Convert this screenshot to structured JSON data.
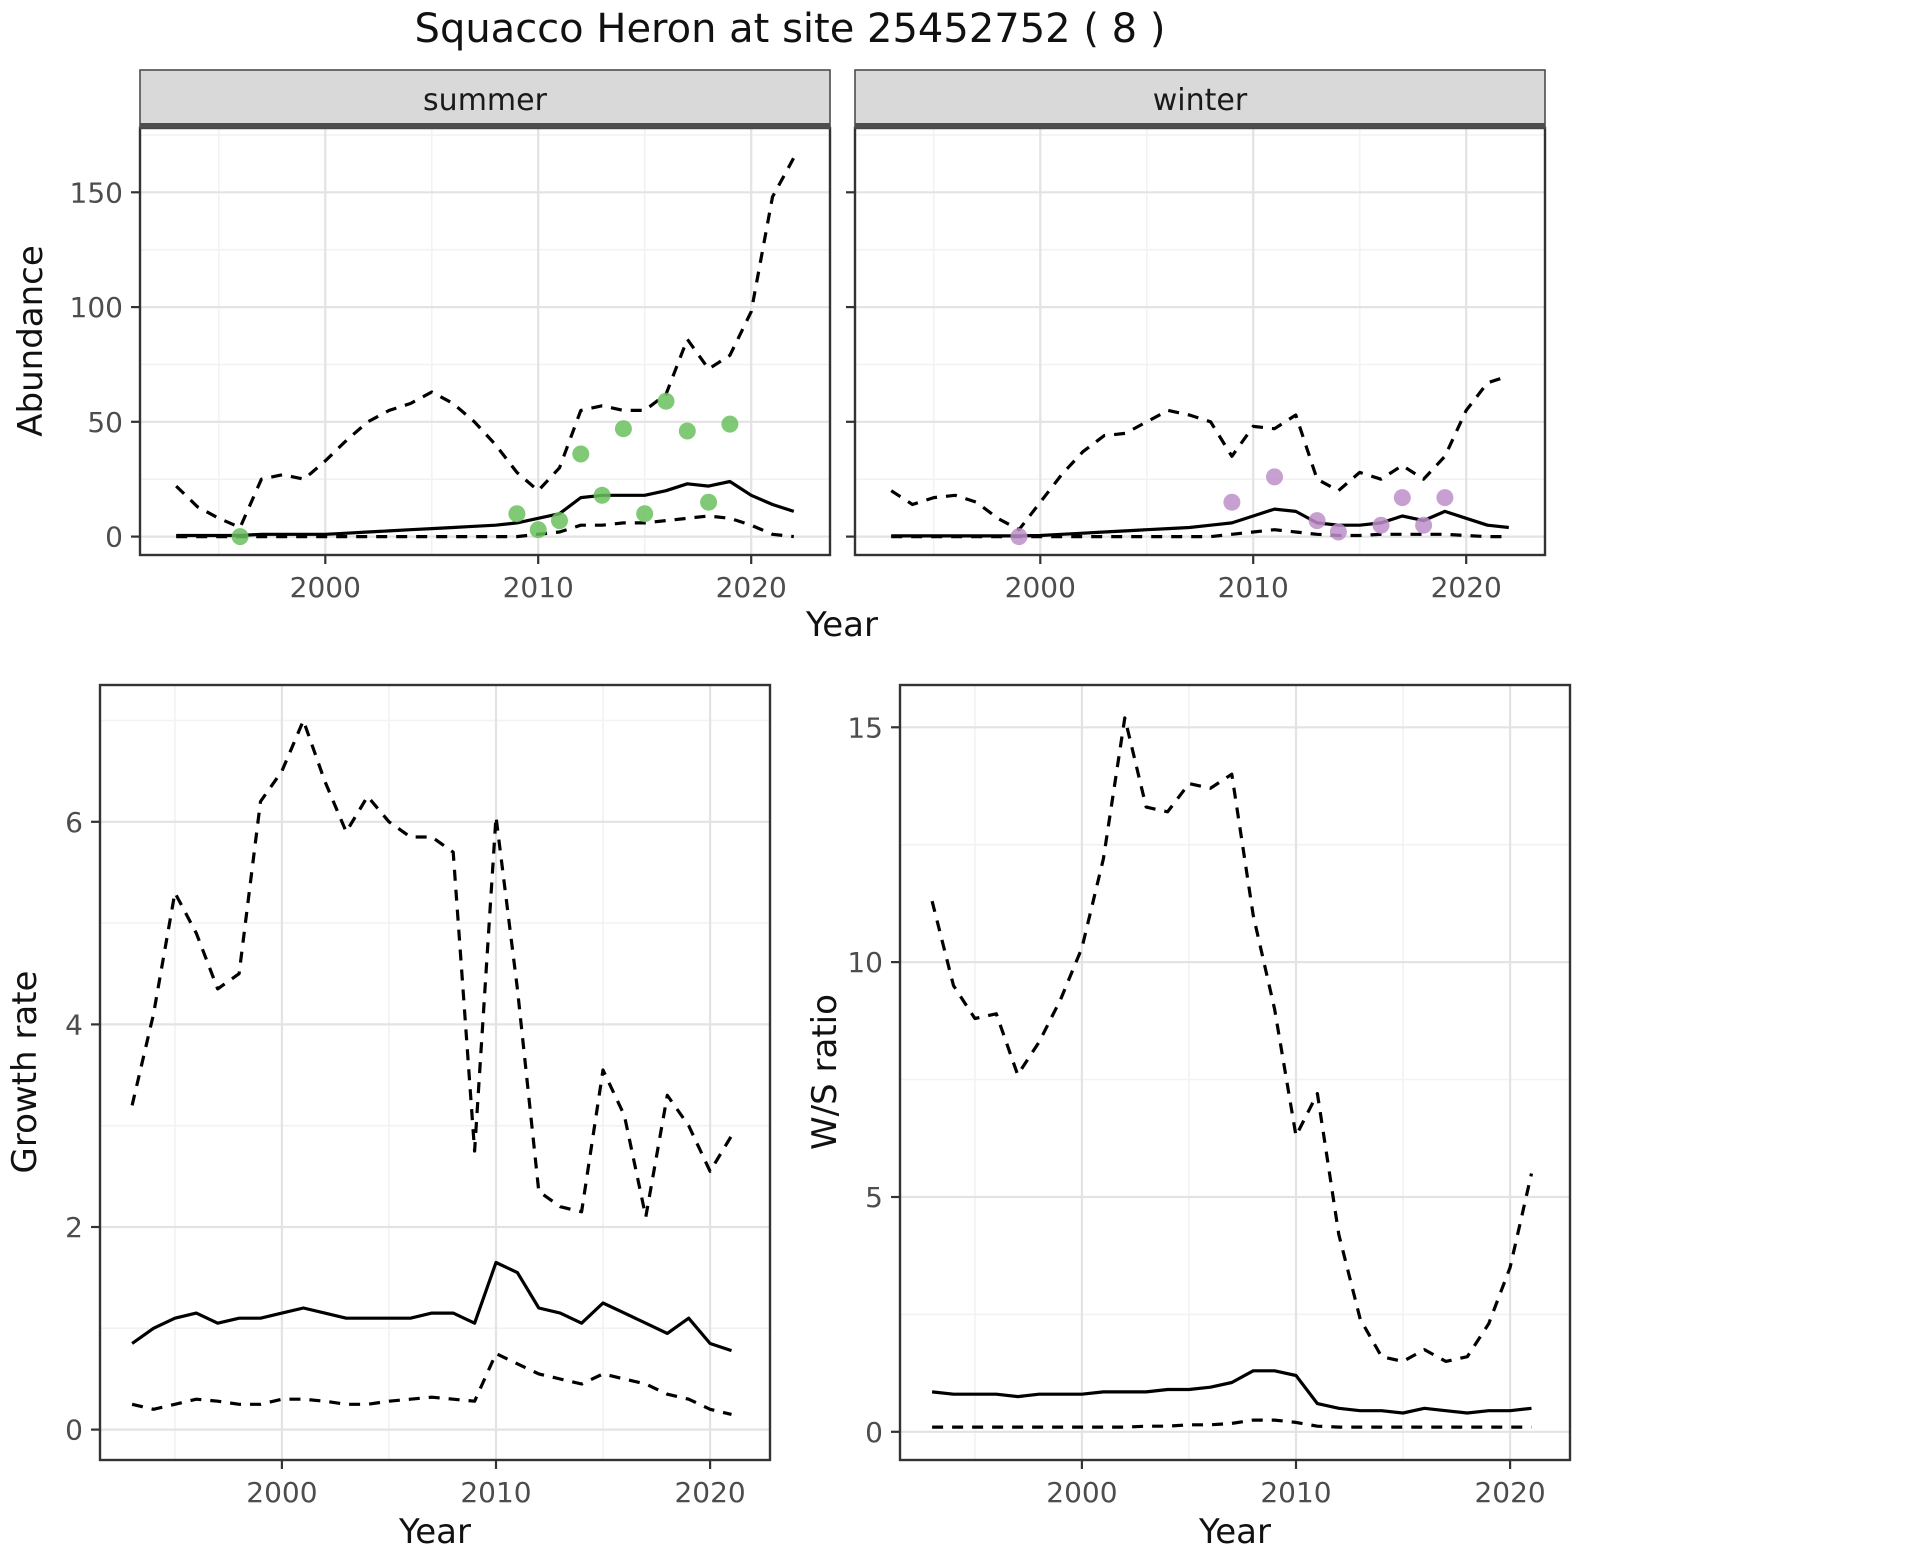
{
  "title": "Squacco Heron at site 25452752 ( 8 )",
  "colors": {
    "summer_points": "#6abf5f",
    "winter_points": "#bd8fc9",
    "line": "#000000",
    "strip_bg": "#d9d9d9",
    "strip_border": "#4d4d4d",
    "grid_major": "#e3e3e3",
    "grid_minor": "#f2f2f2",
    "panel_border": "#333333",
    "tick_text": "#4d4d4d"
  },
  "chart_data": [
    {
      "id": "abundance-summer",
      "type": "line",
      "facet": "summer",
      "xlabel": "Year",
      "ylabel": "Abundance",
      "xlim": [
        1991.3,
        2023.7
      ],
      "ylim": [
        -8,
        178
      ],
      "xticks": [
        2000,
        2010,
        2020
      ],
      "yticks": [
        0,
        50,
        100,
        150
      ],
      "xticks_minor": [
        1995,
        2005,
        2015
      ],
      "yticks_minor": [
        25,
        75,
        125,
        175
      ],
      "grid": true,
      "legend": "none",
      "x": [
        1993,
        1994,
        1995,
        1996,
        1997,
        1998,
        1999,
        2000,
        2001,
        2002,
        2003,
        2004,
        2005,
        2006,
        2007,
        2008,
        2009,
        2010,
        2011,
        2012,
        2013,
        2014,
        2015,
        2016,
        2017,
        2018,
        2019,
        2020,
        2021,
        2022
      ],
      "series": [
        {
          "name": "upper-ci",
          "style": "dashed",
          "values": [
            22,
            13,
            8,
            4,
            25,
            27,
            25,
            33,
            42,
            50,
            55,
            58,
            63,
            58,
            50,
            40,
            28,
            20,
            30,
            55,
            57,
            55,
            55,
            62,
            86,
            73,
            79,
            98,
            148,
            165
          ]
        },
        {
          "name": "median",
          "style": "solid",
          "values": [
            0.5,
            0.5,
            0.5,
            0.5,
            1,
            1,
            1,
            1,
            1.5,
            2,
            2.5,
            3,
            3.5,
            4,
            4.5,
            5,
            6,
            8,
            10,
            17,
            18,
            18,
            18,
            20,
            23,
            22,
            24,
            18,
            14,
            11
          ]
        },
        {
          "name": "lower-ci",
          "style": "dashed",
          "values": [
            0,
            0,
            0,
            0,
            0,
            0,
            0,
            0,
            0,
            0,
            0,
            0,
            0,
            0,
            0,
            0,
            0,
            1,
            2,
            5,
            5,
            6,
            6,
            7,
            8,
            9,
            8,
            5,
            1,
            0
          ]
        }
      ],
      "points": {
        "name": "observed-summer-counts",
        "color": "#6abf5f",
        "x": [
          1996,
          2009,
          2010,
          2011,
          2012,
          2013,
          2014,
          2015,
          2016,
          2017,
          2018,
          2019
        ],
        "y": [
          0,
          10,
          3,
          7,
          36,
          18,
          47,
          10,
          59,
          46,
          15,
          49
        ]
      }
    },
    {
      "id": "abundance-winter",
      "type": "line",
      "facet": "winter",
      "xlabel": "Year",
      "ylabel": "Abundance",
      "xlim": [
        1991.3,
        2023.7
      ],
      "ylim": [
        -8,
        178
      ],
      "xticks": [
        2000,
        2010,
        2020
      ],
      "yticks": [
        0,
        50,
        100,
        150
      ],
      "xticks_minor": [
        1995,
        2005,
        2015
      ],
      "yticks_minor": [
        25,
        75,
        125,
        175
      ],
      "grid": true,
      "legend": "none",
      "x": [
        1993,
        1994,
        1995,
        1996,
        1997,
        1998,
        1999,
        2000,
        2001,
        2002,
        2003,
        2004,
        2005,
        2006,
        2007,
        2008,
        2009,
        2010,
        2011,
        2012,
        2013,
        2014,
        2015,
        2016,
        2017,
        2018,
        2019,
        2020,
        2021,
        2022
      ],
      "series": [
        {
          "name": "upper-ci",
          "style": "dashed",
          "values": [
            20,
            14,
            17,
            18,
            15,
            8,
            3,
            15,
            27,
            37,
            44,
            45,
            50,
            55,
            53,
            50,
            35,
            48,
            47,
            53,
            25,
            20,
            28,
            25,
            31,
            25,
            35,
            55,
            67,
            70
          ]
        },
        {
          "name": "median",
          "style": "solid",
          "values": [
            0.3,
            0.3,
            0.3,
            0.3,
            0.3,
            0.3,
            0.3,
            0.5,
            1,
            1.5,
            2,
            2.5,
            3,
            3.5,
            4,
            5,
            6,
            9,
            12,
            11,
            6,
            5,
            5,
            6,
            9,
            7,
            11,
            8,
            5,
            4
          ]
        },
        {
          "name": "lower-ci",
          "style": "dashed",
          "values": [
            0,
            0,
            0,
            0,
            0,
            0,
            0,
            0,
            0,
            0,
            0,
            0,
            0,
            0,
            0,
            0,
            1,
            2,
            3,
            2,
            1,
            0.5,
            0.5,
            1,
            1,
            1,
            1,
            0.5,
            0,
            0
          ]
        }
      ],
      "points": {
        "name": "observed-winter-counts",
        "color": "#bd8fc9",
        "x": [
          1999,
          2009,
          2011,
          2013,
          2014,
          2016,
          2017,
          2018,
          2019
        ],
        "y": [
          0,
          15,
          26,
          7,
          2,
          5,
          17,
          5,
          17
        ]
      }
    },
    {
      "id": "growth-rate",
      "type": "line",
      "facet": "",
      "xlabel": "Year",
      "ylabel": "Growth rate",
      "xlim": [
        1991.5,
        2022.8
      ],
      "ylim": [
        -0.3,
        7.35
      ],
      "xticks": [
        2000,
        2010,
        2020
      ],
      "yticks": [
        0,
        2,
        4,
        6
      ],
      "xticks_minor": [
        1995,
        2005,
        2015
      ],
      "yticks_minor": [
        1,
        3,
        5,
        7
      ],
      "grid": true,
      "legend": "none",
      "x": [
        1993,
        1994,
        1995,
        1996,
        1997,
        1998,
        1999,
        2000,
        2001,
        2002,
        2003,
        2004,
        2005,
        2006,
        2007,
        2008,
        2009,
        2010,
        2011,
        2012,
        2013,
        2014,
        2015,
        2016,
        2017,
        2018,
        2019,
        2020,
        2021
      ],
      "series": [
        {
          "name": "upper-ci",
          "style": "dashed",
          "values": [
            3.2,
            4.1,
            5.3,
            4.9,
            4.35,
            4.5,
            6.2,
            6.5,
            7.0,
            6.4,
            5.9,
            6.25,
            6.0,
            5.85,
            5.85,
            5.7,
            2.75,
            6.05,
            4.35,
            2.35,
            2.2,
            2.15,
            3.55,
            3.1,
            2.1,
            3.3,
            3.0,
            2.55,
            2.9
          ]
        },
        {
          "name": "median",
          "style": "solid",
          "values": [
            0.85,
            1.0,
            1.1,
            1.15,
            1.05,
            1.1,
            1.1,
            1.15,
            1.2,
            1.15,
            1.1,
            1.1,
            1.1,
            1.1,
            1.15,
            1.15,
            1.05,
            1.65,
            1.55,
            1.2,
            1.15,
            1.05,
            1.25,
            1.15,
            1.05,
            0.95,
            1.1,
            0.85,
            0.78
          ]
        },
        {
          "name": "lower-ci",
          "style": "dashed",
          "values": [
            0.25,
            0.2,
            0.25,
            0.3,
            0.28,
            0.25,
            0.25,
            0.3,
            0.3,
            0.28,
            0.25,
            0.25,
            0.28,
            0.3,
            0.32,
            0.3,
            0.28,
            0.75,
            0.65,
            0.55,
            0.5,
            0.45,
            0.55,
            0.5,
            0.45,
            0.35,
            0.3,
            0.2,
            0.15
          ]
        }
      ],
      "points": null
    },
    {
      "id": "ws-ratio",
      "type": "line",
      "facet": "",
      "xlabel": "Year",
      "ylabel": "W/S ratio",
      "xlim": [
        1991.5,
        2022.8
      ],
      "ylim": [
        -0.6,
        15.9
      ],
      "xticks": [
        2000,
        2010,
        2020
      ],
      "yticks": [
        0,
        5,
        10,
        15
      ],
      "xticks_minor": [
        1995,
        2005,
        2015
      ],
      "yticks_minor": [
        2.5,
        7.5,
        12.5
      ],
      "grid": true,
      "legend": "none",
      "x": [
        1993,
        1994,
        1995,
        1996,
        1997,
        1998,
        1999,
        2000,
        2001,
        2002,
        2003,
        2004,
        2005,
        2006,
        2007,
        2008,
        2009,
        2010,
        2011,
        2012,
        2013,
        2014,
        2015,
        2016,
        2017,
        2018,
        2019,
        2020,
        2021
      ],
      "series": [
        {
          "name": "upper-ci",
          "style": "dashed",
          "values": [
            11.3,
            9.5,
            8.8,
            8.9,
            7.6,
            8.3,
            9.2,
            10.3,
            12.2,
            15.2,
            13.3,
            13.2,
            13.8,
            13.7,
            14.0,
            11.0,
            9.0,
            6.3,
            7.2,
            4.2,
            2.4,
            1.6,
            1.5,
            1.75,
            1.5,
            1.6,
            2.3,
            3.5,
            5.5
          ]
        },
        {
          "name": "median",
          "style": "solid",
          "values": [
            0.85,
            0.8,
            0.8,
            0.8,
            0.75,
            0.8,
            0.8,
            0.8,
            0.85,
            0.85,
            0.85,
            0.9,
            0.9,
            0.95,
            1.05,
            1.3,
            1.3,
            1.2,
            0.6,
            0.5,
            0.45,
            0.45,
            0.4,
            0.5,
            0.45,
            0.4,
            0.45,
            0.45,
            0.5
          ]
        },
        {
          "name": "lower-ci",
          "style": "dashed",
          "values": [
            0.1,
            0.1,
            0.1,
            0.1,
            0.1,
            0.1,
            0.1,
            0.1,
            0.1,
            0.1,
            0.12,
            0.12,
            0.15,
            0.15,
            0.18,
            0.25,
            0.25,
            0.2,
            0.12,
            0.1,
            0.1,
            0.1,
            0.1,
            0.1,
            0.1,
            0.1,
            0.1,
            0.1,
            0.1
          ]
        }
      ],
      "points": null
    }
  ]
}
